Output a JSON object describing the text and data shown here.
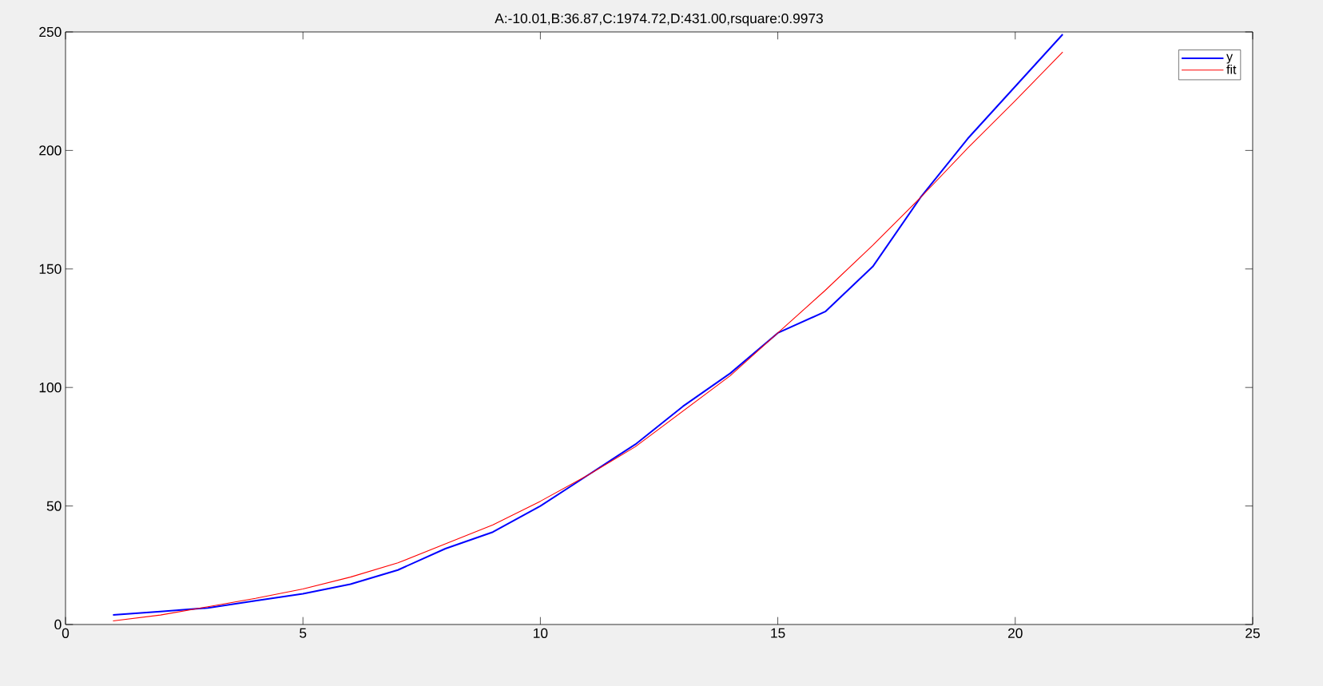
{
  "chart_data": {
    "type": "line",
    "title": "A:-10.01,B:36.87,C:1974.72,D:431.00,rsquare:0.9973",
    "x": [
      1,
      2,
      3,
      4,
      5,
      6,
      7,
      8,
      9,
      10,
      11,
      12,
      13,
      14,
      15,
      16,
      17,
      18,
      19,
      20,
      21
    ],
    "series": [
      {
        "name": "y",
        "color": "#0000ff",
        "values": [
          4,
          5.5,
          7,
          10,
          13,
          17,
          23,
          32,
          39,
          50,
          63,
          76,
          92,
          106,
          123,
          132,
          151,
          180,
          205,
          227,
          249
        ]
      },
      {
        "name": "fit",
        "color": "#ff0000",
        "values": [
          1.5,
          4,
          7.5,
          11,
          15,
          20,
          26,
          34,
          42,
          52,
          63,
          75,
          90,
          105,
          123,
          141,
          160,
          180,
          201,
          221,
          241.5
        ]
      }
    ],
    "xlim": [
      0,
      25
    ],
    "xticks": [
      0,
      5,
      10,
      15,
      20,
      25
    ],
    "ylim": [
      0,
      250
    ],
    "yticks": [
      0,
      50,
      100,
      150,
      200,
      250
    ],
    "legend": "top right",
    "marker": "none",
    "line_style": "solid"
  }
}
